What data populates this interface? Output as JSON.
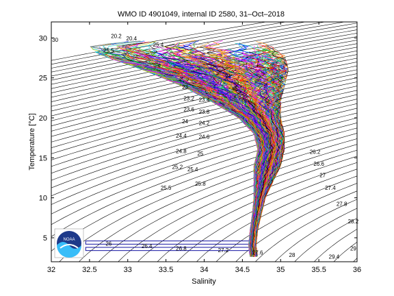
{
  "chart_data": {
    "type": "line",
    "title": "WMO ID 4901049, internal ID 2580, 31–Oct–2018",
    "xlabel": "Salinity",
    "ylabel": "Temperature [°C]",
    "xlim": [
      32,
      36
    ],
    "ylim": [
      2,
      32
    ],
    "x_ticks": [
      "32",
      "32.5",
      "33",
      "33.5",
      "34",
      "34.5",
      "35",
      "35.5",
      "36"
    ],
    "y_ticks": [
      "5",
      "10",
      "15",
      "20",
      "25",
      "30"
    ],
    "grid": false,
    "background_contours": {
      "quantity": "density (sigma-theta)",
      "step": 0.2,
      "range": [
        19.0,
        29.6
      ],
      "labels": [
        {
          "text": "30",
          "s": 32.05,
          "t": 29.5
        },
        {
          "text": "20.2",
          "s": 32.85,
          "t": 30.0
        },
        {
          "text": "20.4",
          "s": 33.05,
          "t": 29.7
        },
        {
          "text": "25.5",
          "s": 32.75,
          "t": 28.2
        },
        {
          "text": "25.4",
          "s": 33.4,
          "t": 28.9
        },
        {
          "text": "23",
          "s": 33.75,
          "t": 23.6
        },
        {
          "text": "23.2",
          "s": 33.8,
          "t": 22.2
        },
        {
          "text": "23.4",
          "s": 34.0,
          "t": 22.0
        },
        {
          "text": "23.6",
          "s": 33.8,
          "t": 20.8
        },
        {
          "text": "23.8",
          "s": 34.0,
          "t": 20.5
        },
        {
          "text": "24",
          "s": 33.75,
          "t": 19.3
        },
        {
          "text": "24.2",
          "s": 34.0,
          "t": 19.1
        },
        {
          "text": "24.4",
          "s": 33.7,
          "t": 17.5
        },
        {
          "text": "24.6",
          "s": 34.0,
          "t": 17.4
        },
        {
          "text": "24.8",
          "s": 33.7,
          "t": 15.6
        },
        {
          "text": "25",
          "s": 33.95,
          "t": 15.3
        },
        {
          "text": "25.2",
          "s": 33.65,
          "t": 13.6
        },
        {
          "text": "25.4",
          "s": 33.85,
          "t": 13.3
        },
        {
          "text": "25.5",
          "s": 33.5,
          "t": 11.0
        },
        {
          "text": "25.8",
          "s": 33.95,
          "t": 11.5
        },
        {
          "text": "26",
          "s": 32.75,
          "t": 4.0
        },
        {
          "text": "26.4",
          "s": 33.25,
          "t": 3.7
        },
        {
          "text": "26.8",
          "s": 33.7,
          "t": 3.4
        },
        {
          "text": "27.2",
          "s": 34.25,
          "t": 3.2
        },
        {
          "text": "27.6",
          "s": 34.7,
          "t": 2.9
        },
        {
          "text": "28",
          "s": 35.15,
          "t": 2.6
        },
        {
          "text": "29.4",
          "s": 35.7,
          "t": 2.4
        },
        {
          "text": "29",
          "s": 35.95,
          "t": 3.4
        },
        {
          "text": "28.2",
          "s": 35.95,
          "t": 6.8
        },
        {
          "text": "27.8",
          "s": 35.8,
          "t": 9.0
        },
        {
          "text": "27.4",
          "s": 35.65,
          "t": 11.0
        },
        {
          "text": "27",
          "s": 35.55,
          "t": 12.6
        },
        {
          "text": "26.6",
          "s": 35.5,
          "t": 14.0
        },
        {
          "text": "26.2",
          "s": 35.45,
          "t": 15.5
        }
      ]
    },
    "profile_envelope": [
      {
        "t": 2.5,
        "s_min": 34.6,
        "s_max": 34.7
      },
      {
        "t": 4.0,
        "s_min": 34.58,
        "s_max": 34.68
      },
      {
        "t": 6.0,
        "s_min": 34.6,
        "s_max": 34.7
      },
      {
        "t": 8.0,
        "s_min": 34.63,
        "s_max": 34.75
      },
      {
        "t": 10.0,
        "s_min": 34.65,
        "s_max": 34.8
      },
      {
        "t": 12.0,
        "s_min": 34.65,
        "s_max": 34.9
      },
      {
        "t": 14.0,
        "s_min": 34.65,
        "s_max": 35.0
      },
      {
        "t": 16.0,
        "s_min": 34.7,
        "s_max": 35.05
      },
      {
        "t": 18.0,
        "s_min": 34.65,
        "s_max": 35.05
      },
      {
        "t": 20.0,
        "s_min": 34.45,
        "s_max": 35.0
      },
      {
        "t": 22.0,
        "s_min": 34.1,
        "s_max": 35.0
      },
      {
        "t": 24.0,
        "s_min": 33.7,
        "s_max": 35.05
      },
      {
        "t": 26.0,
        "s_min": 33.2,
        "s_max": 35.1
      },
      {
        "t": 28.0,
        "s_min": 32.6,
        "s_max": 35.05
      },
      {
        "t": 29.0,
        "s_min": 32.5,
        "s_max": 34.9
      },
      {
        "t": 30.0,
        "s_min": 33.4,
        "s_max": 34.5
      }
    ],
    "series_colors": [
      "#ff0000",
      "#0000ff",
      "#00aa00",
      "#ff00ff",
      "#00cccc",
      "#cccc00",
      "#000000",
      "#ff8800",
      "#8800ff",
      "#888888"
    ],
    "highlight_bands": [
      {
        "t_lo": 4.2,
        "t_hi": 4.6,
        "color": "#1010a0"
      },
      {
        "t_lo": 3.4,
        "t_hi": 3.8,
        "color": "#1010a0"
      }
    ],
    "logo": {
      "text": "NOAA",
      "colors": [
        "#1e3a8a",
        "#38bdf8"
      ]
    }
  }
}
